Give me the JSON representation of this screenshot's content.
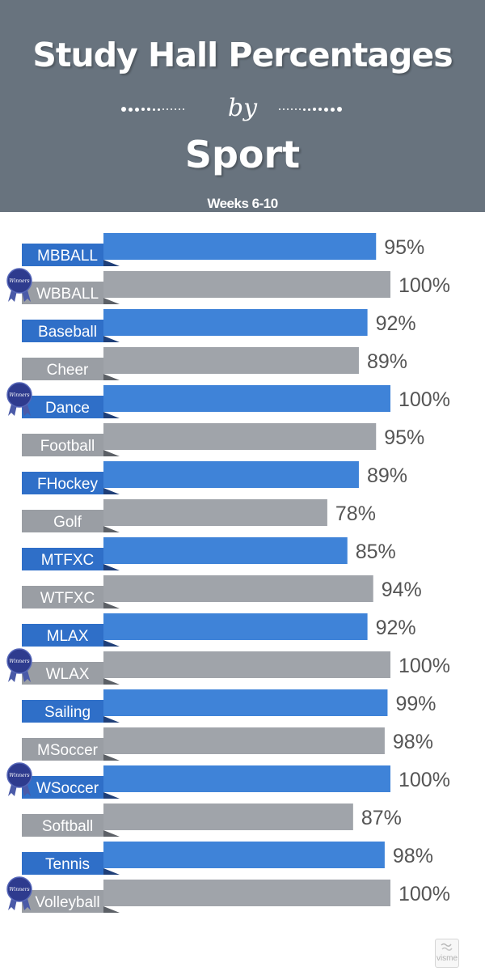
{
  "header": {
    "title": "Study Hall Percentages",
    "by": "by",
    "subtitle": "Sport",
    "weeks": "Weeks 6-10"
  },
  "colors": {
    "header_bg": "#68737e",
    "blue_bar": "#3f83d8",
    "blue_label": "#2f6fc8",
    "gray_bar": "#a0a4aa",
    "gray_label": "#9a9ea4",
    "value_text": "#555555",
    "ribbon": "#2e3b8e"
  },
  "ribbon_text": "Winners",
  "watermark": "visme",
  "chart_data": {
    "type": "bar",
    "orientation": "horizontal",
    "title": "Study Hall Percentages by Sport",
    "subtitle": "Weeks 6-10",
    "xlabel": "",
    "ylabel": "",
    "unit": "%",
    "xlim": [
      0,
      100
    ],
    "grid": false,
    "categories": [
      "MBBALL",
      "WBBALL",
      "Baseball",
      "Cheer",
      "Dance",
      "Football",
      "FHockey",
      "Golf",
      "MTFXC",
      "WTFXC",
      "MLAX",
      "WLAX",
      "Sailing",
      "MSoccer",
      "WSoccer",
      "Softball",
      "Tennis",
      "Volleyball"
    ],
    "values": [
      95,
      100,
      92,
      89,
      100,
      95,
      89,
      78,
      85,
      94,
      92,
      100,
      99,
      98,
      100,
      87,
      98,
      100
    ],
    "value_labels": [
      "95%",
      "100%",
      "92%",
      "89%",
      "100%",
      "95%",
      "89%",
      "78%",
      "85%",
      "94%",
      "92%",
      "100%",
      "99%",
      "98%",
      "100%",
      "87%",
      "98%",
      "100%"
    ],
    "bar_colors": [
      "blue",
      "gray",
      "blue",
      "gray",
      "blue",
      "gray",
      "blue",
      "gray",
      "blue",
      "gray",
      "blue",
      "gray",
      "blue",
      "gray",
      "blue",
      "gray",
      "blue",
      "gray"
    ],
    "winners": [
      false,
      true,
      false,
      false,
      true,
      false,
      false,
      false,
      false,
      false,
      false,
      true,
      false,
      false,
      true,
      false,
      false,
      true
    ]
  }
}
